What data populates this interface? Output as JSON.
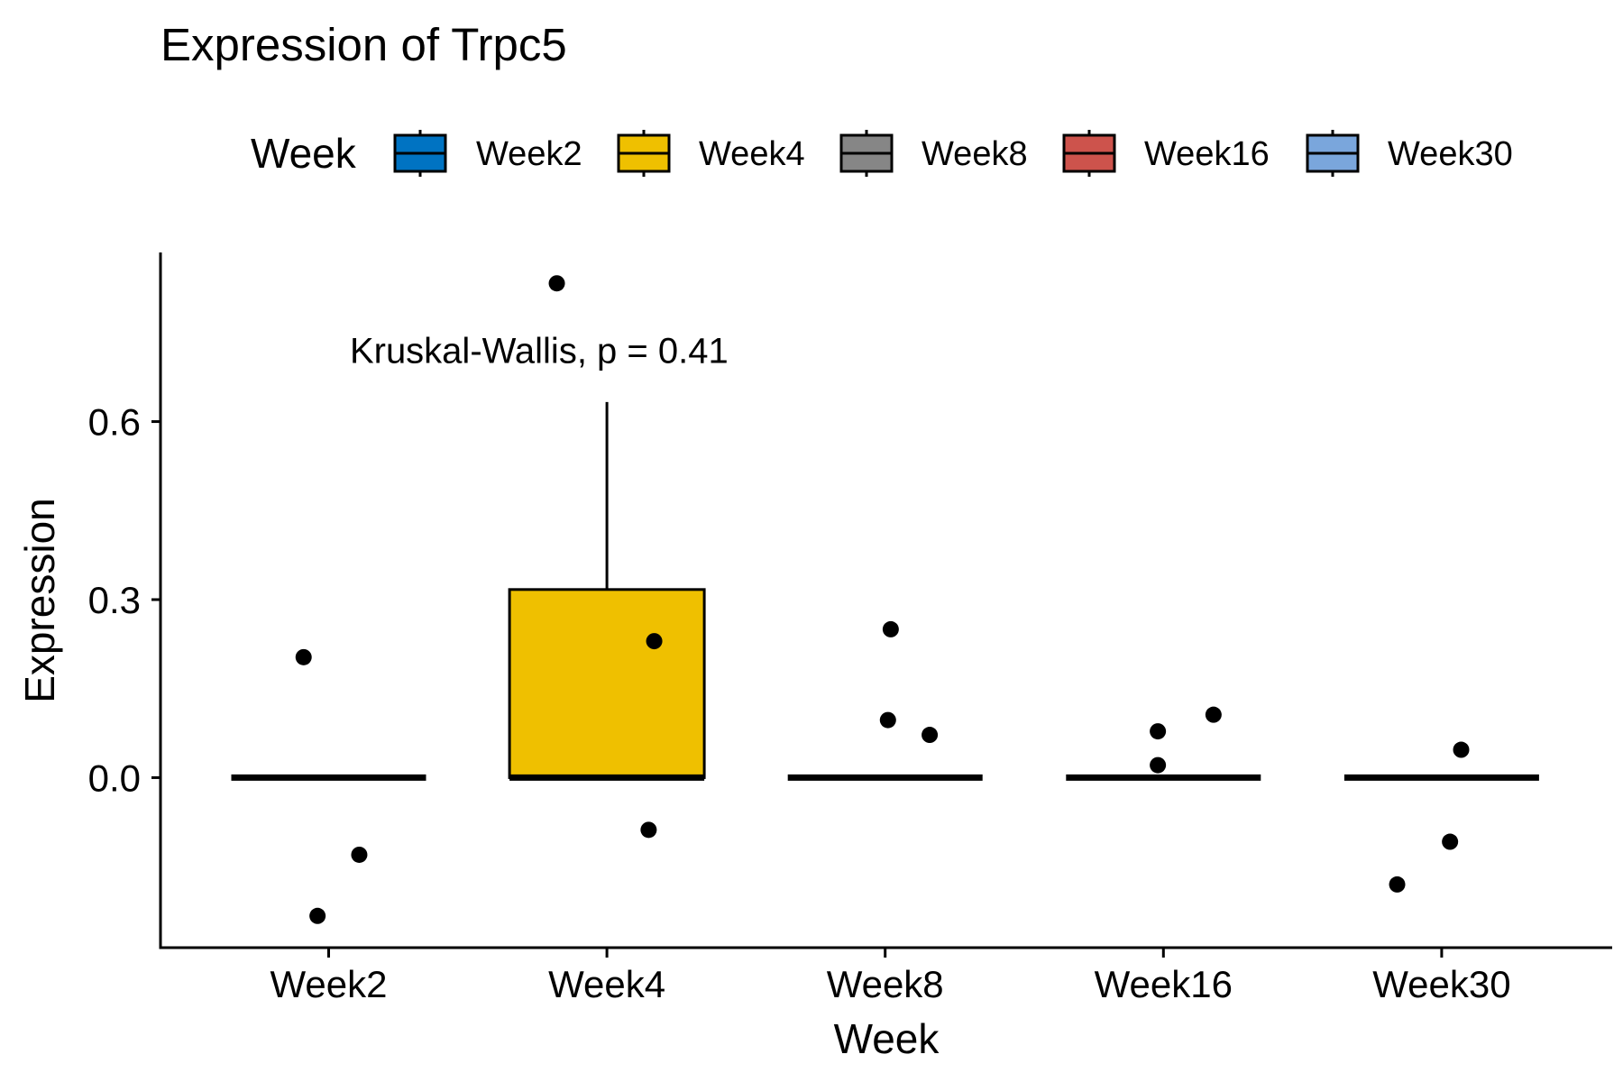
{
  "chart_data": {
    "type": "box",
    "title": "Expression of Trpc5",
    "xlabel": "Week",
    "ylabel": "Expression",
    "categories": [
      "Week2",
      "Week4",
      "Week8",
      "Week16",
      "Week30"
    ],
    "ylim": [
      -0.285,
      0.885
    ],
    "yticks": [
      0.0,
      0.3,
      0.6
    ],
    "ytick_labels": [
      "0.0",
      "0.3",
      "0.6"
    ],
    "legend": {
      "title": "Week",
      "position": "top",
      "entries": [
        "Week2",
        "Week4",
        "Week8",
        "Week16",
        "Week30"
      ]
    },
    "colors": {
      "Week2": "#0073c2",
      "Week4": "#efc000",
      "Week8": "#868686",
      "Week16": "#cd534c",
      "Week30": "#7aa6dc"
    },
    "boxes": [
      {
        "category": "Week2",
        "lower_whisker": 0.0,
        "q1": 0.0,
        "median": 0.0,
        "q3": 0.0,
        "upper_whisker": 0.0
      },
      {
        "category": "Week4",
        "lower_whisker": 0.0,
        "q1": 0.0,
        "median": 0.0,
        "q3": 0.317,
        "upper_whisker": 0.633
      },
      {
        "category": "Week8",
        "lower_whisker": 0.0,
        "q1": 0.0,
        "median": 0.0,
        "q3": 0.0,
        "upper_whisker": 0.0
      },
      {
        "category": "Week16",
        "lower_whisker": 0.0,
        "q1": 0.0,
        "median": 0.0,
        "q3": 0.0,
        "upper_whisker": 0.0
      },
      {
        "category": "Week30",
        "lower_whisker": 0.0,
        "q1": 0.0,
        "median": 0.0,
        "q3": 0.0,
        "upper_whisker": 0.0
      }
    ],
    "points": [
      {
        "category": "Week2",
        "jitter": -0.09,
        "y": 0.203
      },
      {
        "category": "Week2",
        "jitter": 0.11,
        "y": -0.13
      },
      {
        "category": "Week2",
        "jitter": -0.04,
        "y": -0.233
      },
      {
        "category": "Week4",
        "jitter": -0.18,
        "y": 0.833
      },
      {
        "category": "Week4",
        "jitter": 0.17,
        "y": 0.23
      },
      {
        "category": "Week4",
        "jitter": 0.15,
        "y": -0.088
      },
      {
        "category": "Week8",
        "jitter": 0.02,
        "y": 0.25
      },
      {
        "category": "Week8",
        "jitter": 0.01,
        "y": 0.097
      },
      {
        "category": "Week8",
        "jitter": 0.16,
        "y": 0.072
      },
      {
        "category": "Week16",
        "jitter": -0.02,
        "y": 0.078
      },
      {
        "category": "Week16",
        "jitter": 0.18,
        "y": 0.106
      },
      {
        "category": "Week16",
        "jitter": -0.02,
        "y": 0.021
      },
      {
        "category": "Week30",
        "jitter": -0.16,
        "y": -0.18
      },
      {
        "category": "Week30",
        "jitter": 0.03,
        "y": -0.108
      },
      {
        "category": "Week30",
        "jitter": 0.07,
        "y": 0.047
      }
    ],
    "annotation": {
      "text": "Kruskal-Wallis, p = 0.41",
      "x": 1.4,
      "y": 0.72
    },
    "grid": false
  }
}
